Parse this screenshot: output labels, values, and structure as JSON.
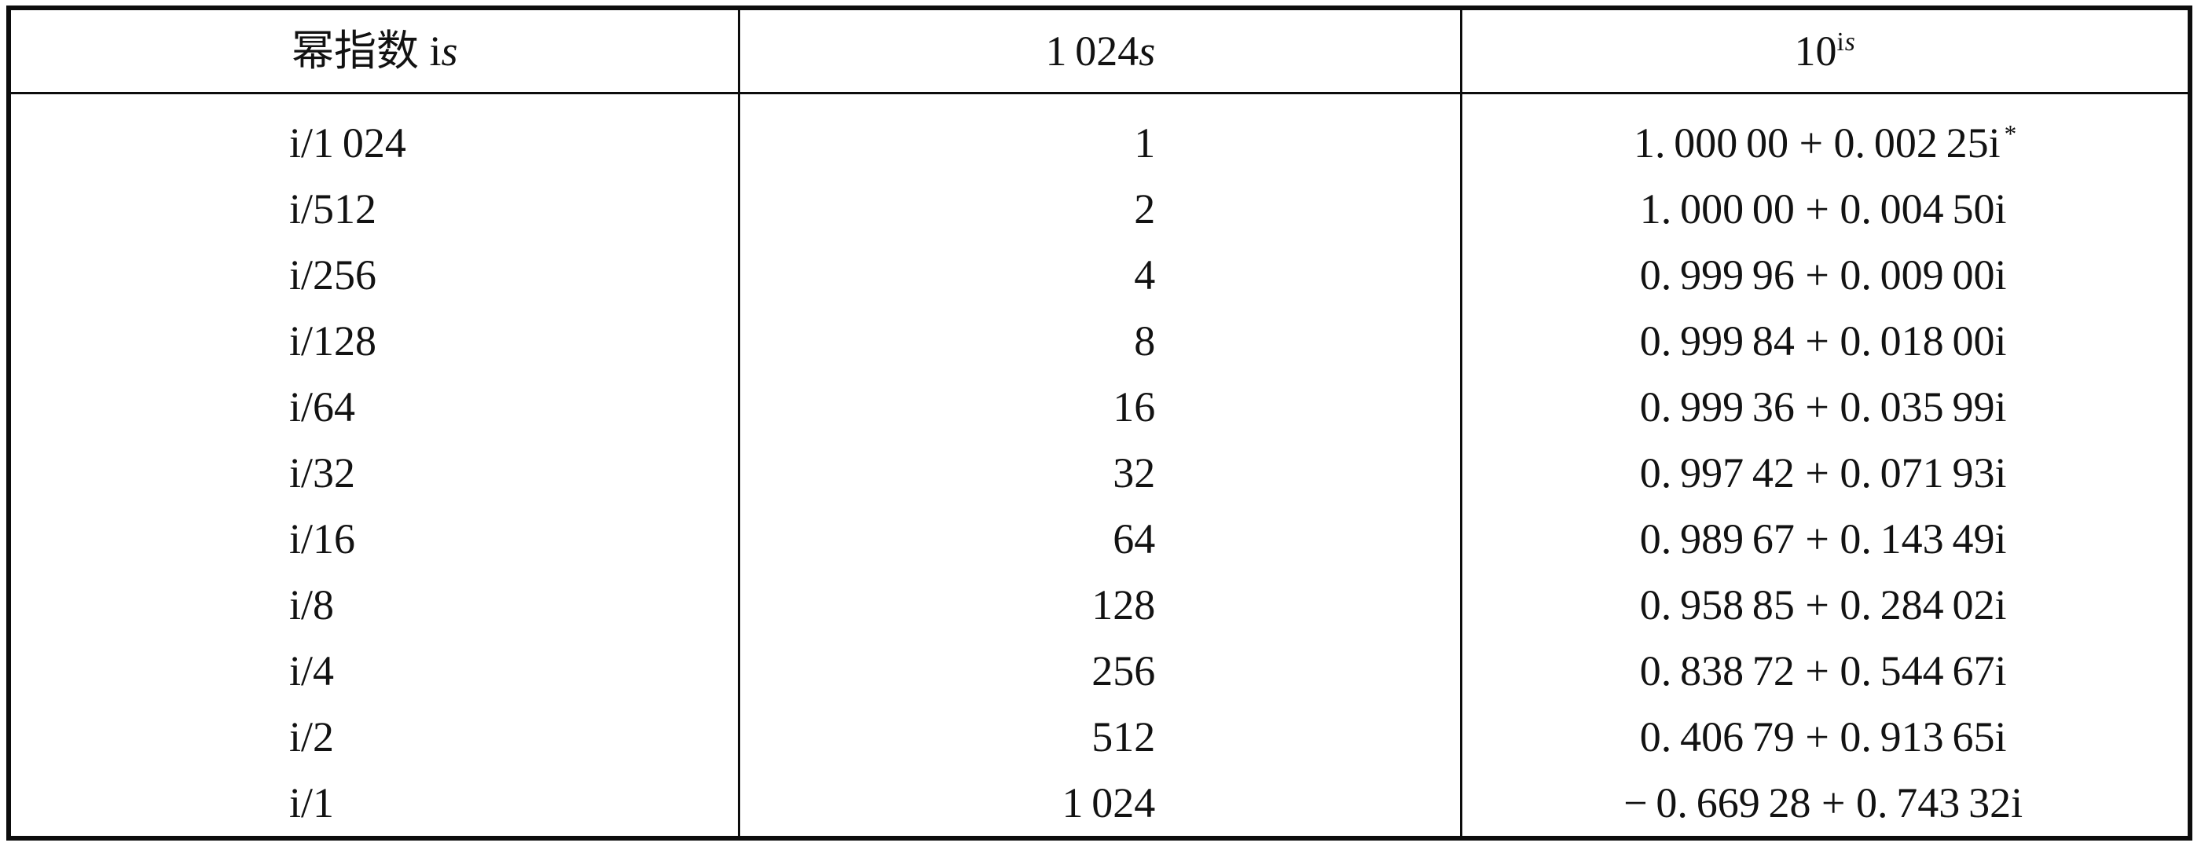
{
  "colors": {
    "ink": "#121212",
    "paper": "#ffffff"
  },
  "table": {
    "headers": {
      "exponent": {
        "text": "幂指数 i",
        "italic": "s"
      },
      "factor": {
        "text": "1 024",
        "italic": "s"
      },
      "power": {
        "base": "10",
        "sup_roman": "i",
        "sup_italic": "s"
      }
    },
    "rows": [
      {
        "exponent": "i/1 024",
        "factor": "1",
        "value": "1. 000 00 + 0. 002 25i",
        "star": "*"
      },
      {
        "exponent": "i/512",
        "factor": "2",
        "value": "1. 000 00 + 0. 004 50i"
      },
      {
        "exponent": "i/256",
        "factor": "4",
        "value": "0. 999 96 + 0. 009 00i"
      },
      {
        "exponent": "i/128",
        "factor": "8",
        "value": "0. 999 84 + 0. 018 00i"
      },
      {
        "exponent": "i/64",
        "factor": "16",
        "value": "0. 999 36 + 0. 035 99i"
      },
      {
        "exponent": "i/32",
        "factor": "32",
        "value": "0. 997 42 + 0. 071 93i"
      },
      {
        "exponent": "i/16",
        "factor": "64",
        "value": "0. 989 67 + 0. 143 49i"
      },
      {
        "exponent": "i/8",
        "factor": "128",
        "value": "0. 958 85 + 0. 284 02i"
      },
      {
        "exponent": "i/4",
        "factor": "256",
        "value": "0. 838 72 + 0. 544 67i"
      },
      {
        "exponent": "i/2",
        "factor": "512",
        "value": "0. 406 79 + 0. 913 65i"
      },
      {
        "exponent": "i/1",
        "factor": "1 024",
        "value": "− 0. 669 28 + 0. 743 32i"
      }
    ]
  }
}
